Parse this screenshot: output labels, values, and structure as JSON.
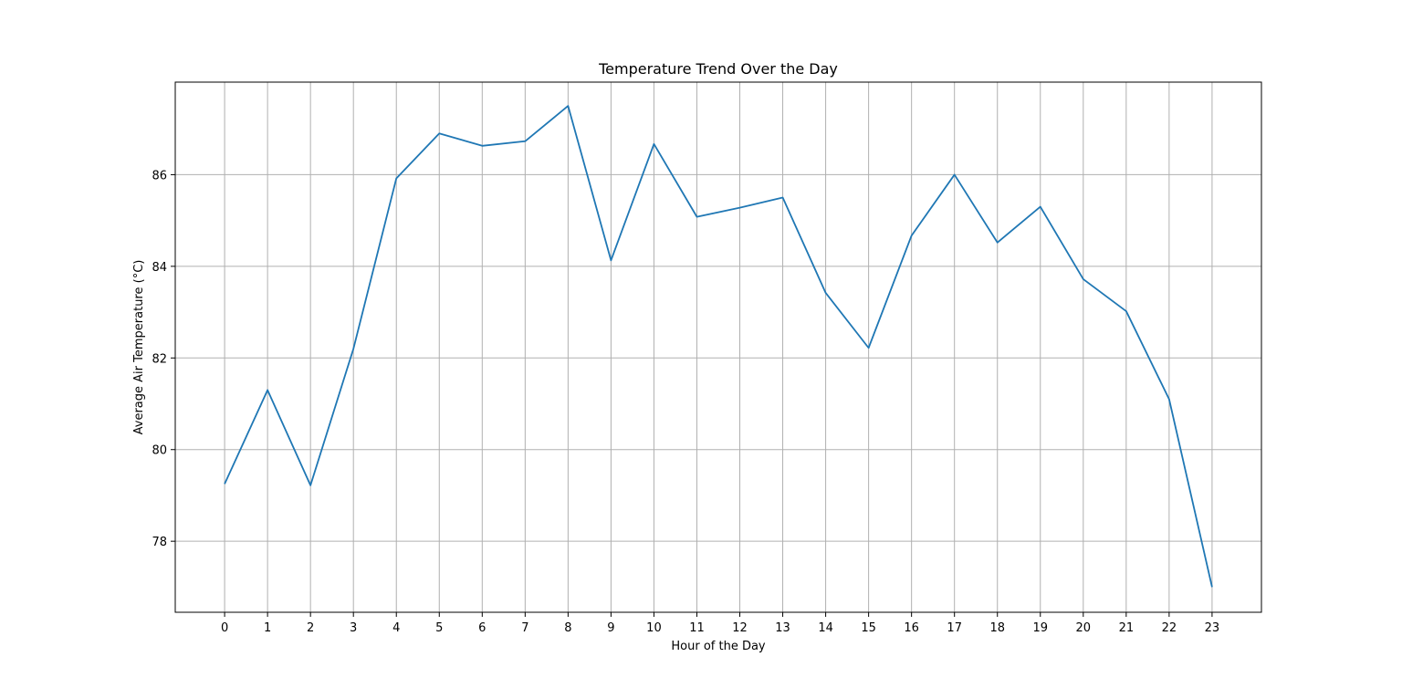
{
  "chart_data": {
    "type": "line",
    "title": "Temperature Trend Over the Day",
    "xlabel": "Hour of the Day",
    "ylabel": "Average Air Temperature (°C)",
    "x": [
      0,
      1,
      2,
      3,
      4,
      5,
      6,
      7,
      8,
      9,
      10,
      11,
      12,
      13,
      14,
      15,
      16,
      17,
      18,
      19,
      20,
      21,
      22,
      23
    ],
    "series": [
      {
        "values": [
          79.25,
          81.3,
          79.22,
          82.2,
          85.92,
          86.9,
          86.63,
          86.73,
          87.5,
          84.13,
          86.67,
          85.08,
          85.28,
          85.5,
          83.42,
          82.22,
          84.67,
          86.0,
          84.52,
          85.3,
          83.72,
          83.02,
          81.1,
          77.0
        ],
        "color": "#1f77b4"
      }
    ],
    "xticks": [
      0,
      1,
      2,
      3,
      4,
      5,
      6,
      7,
      8,
      9,
      10,
      11,
      12,
      13,
      14,
      15,
      16,
      17,
      18,
      19,
      20,
      21,
      22,
      23
    ],
    "yticks": [
      78,
      80,
      82,
      84,
      86
    ],
    "xlim": [
      -1.15,
      24.15
    ],
    "ylim": [
      76.45,
      88.02
    ],
    "grid": true
  }
}
